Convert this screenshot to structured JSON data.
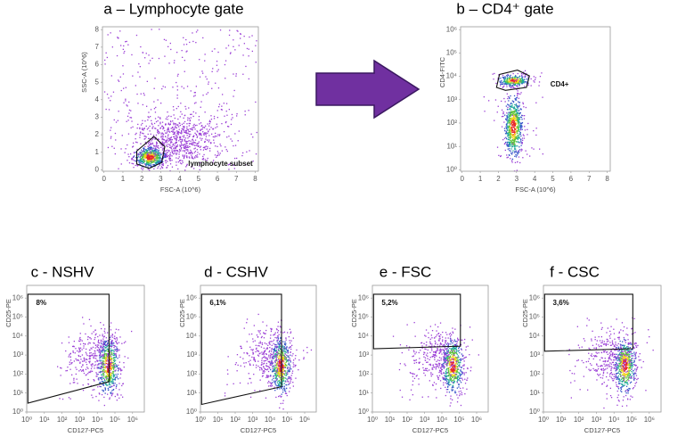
{
  "panels": [
    {
      "title": "a – Lymphocyte gate",
      "x_label": "FSC-A (10^6)",
      "y_label": "SSC-A (10^6)",
      "x_ticks": [
        0,
        1,
        2,
        3,
        4,
        5,
        6,
        7,
        8
      ],
      "y_ticks": [
        0,
        1,
        2,
        3,
        4,
        5,
        6,
        7,
        8
      ],
      "gate_label": "lymphocyte subset"
    },
    {
      "title": "b – CD4⁺ gate",
      "x_label": "FSC-A (10^6)",
      "y_label": "CD4-FITC",
      "x_ticks": [
        0,
        1,
        2,
        3,
        4,
        5,
        6,
        7,
        8
      ],
      "y_ticks": [
        "10⁰",
        "10¹",
        "10²",
        "10³",
        "10⁴",
        "10⁵",
        "10⁶"
      ],
      "gate_label": "CD4+"
    },
    {
      "title": "c - NSHV",
      "x_label": "CD127-PC5",
      "y_label": "CD25-PE",
      "x_ticks": [
        "10⁰",
        "10¹",
        "10²",
        "10³",
        "10⁴",
        "10⁵",
        "10⁶"
      ],
      "y_ticks": [
        "10⁰",
        "10¹",
        "10²",
        "10³",
        "10⁴",
        "10⁵",
        "10⁶"
      ],
      "gate_label": "8%"
    },
    {
      "title": "d - CSHV",
      "x_label": "CD127-PC5",
      "y_label": "CD25-PE",
      "x_ticks": [
        "10⁰",
        "10¹",
        "10²",
        "10³",
        "10⁴",
        "10⁵",
        "10⁶"
      ],
      "y_ticks": [
        "10⁰",
        "10¹",
        "10²",
        "10³",
        "10⁴",
        "10⁵",
        "10⁶"
      ],
      "gate_label": "6,1%"
    },
    {
      "title": "e - FSC",
      "x_label": "CD127-PC5",
      "y_label": "CD25-PE",
      "x_ticks": [
        "10⁰",
        "10¹",
        "10²",
        "10³",
        "10⁴",
        "10⁵",
        "10⁶"
      ],
      "y_ticks": [
        "10⁰",
        "10¹",
        "10²",
        "10³",
        "10⁴",
        "10⁵",
        "10⁶"
      ],
      "gate_label": "5,2%"
    },
    {
      "title": "f - CSC",
      "x_label": "CD127-PC5",
      "y_label": "CD25-PE",
      "x_ticks": [
        "10⁰",
        "10¹",
        "10²",
        "10³",
        "10⁴",
        "10⁵",
        "10⁶"
      ],
      "y_ticks": [
        "10⁰",
        "10¹",
        "10²",
        "10³",
        "10⁴",
        "10⁵",
        "10⁶"
      ],
      "gate_label": "3,6%"
    }
  ]
}
